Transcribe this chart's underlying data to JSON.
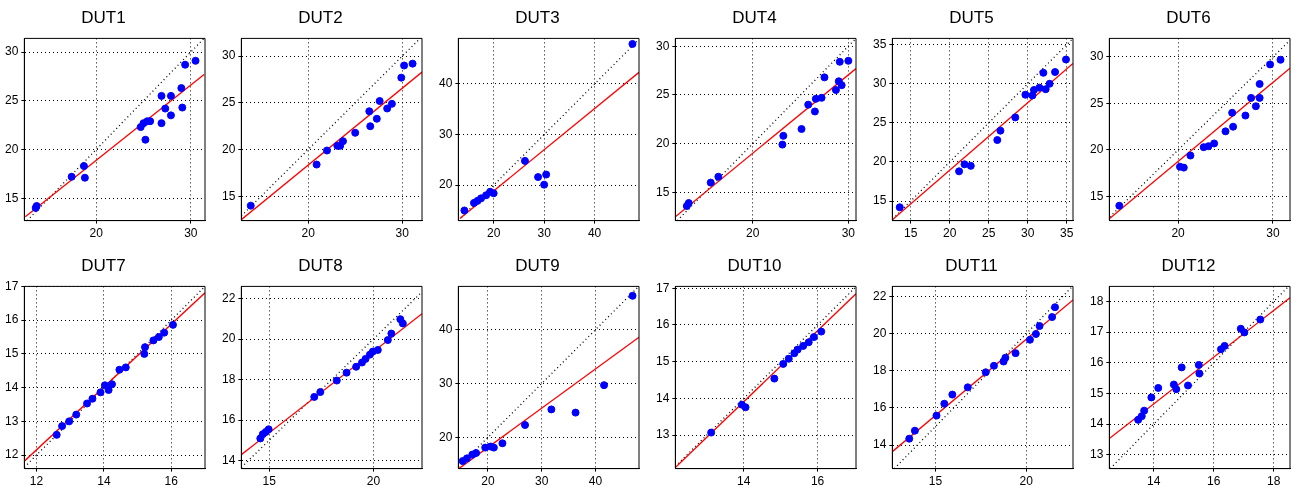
{
  "chart_data": [
    {
      "type": "scatter",
      "title": "DUT1",
      "xlim": [
        12.4,
        31.5
      ],
      "ylim": [
        12.7,
        31.4
      ],
      "xticks": [
        20,
        30
      ],
      "yticks": [
        15,
        20,
        25,
        30
      ],
      "grid": true,
      "legend": false,
      "series": [
        {
          "color": "#0000ff",
          "marker": "circle",
          "x": [
            13.6,
            13.7,
            17.4,
            18.7,
            18.8,
            24.7,
            25.0,
            25.2,
            25.4,
            25.7,
            26.9,
            26.9,
            27.3,
            27.9,
            27.9,
            29.0,
            29.1,
            29.4,
            30.5
          ],
          "values": [
            14.0,
            14.2,
            17.2,
            18.3,
            17.1,
            22.3,
            22.7,
            21.0,
            22.9,
            22.9,
            25.5,
            22.7,
            24.2,
            25.5,
            23.5,
            26.3,
            24.3,
            28.7,
            29.1
          ]
        },
        {
          "type": "line",
          "color": "#ff0000",
          "marker": "none",
          "line_style": "solid",
          "x": [
            12.5,
            31.4
          ],
          "values": [
            13.1,
            27.7
          ]
        },
        {
          "type": "line",
          "color": "#000000",
          "marker": "none",
          "line_style": "dotted",
          "x": [
            12.7,
            31.4
          ],
          "values": [
            12.7,
            31.4
          ]
        }
      ]
    },
    {
      "type": "scatter",
      "title": "DUT2",
      "xlim": [
        12.9,
        32.1
      ],
      "ylim": [
        12.4,
        31.9
      ],
      "xticks": [
        20,
        30
      ],
      "yticks": [
        15,
        20,
        25,
        30
      ],
      "grid": true,
      "legend": false,
      "series": [
        {
          "color": "#0000ff",
          "marker": "circle",
          "x": [
            13.9,
            20.9,
            22.0,
            23.1,
            23.4,
            23.7,
            25.0,
            26.5,
            26.6,
            27.3,
            27.6,
            28.4,
            28.9,
            29.9,
            30.2,
            31.1
          ],
          "values": [
            14.0,
            18.4,
            19.9,
            20.4,
            20.4,
            20.9,
            21.8,
            24.1,
            22.5,
            23.3,
            25.2,
            24.4,
            24.9,
            27.7,
            29.0,
            29.2
          ]
        },
        {
          "type": "line",
          "color": "#ff0000",
          "marker": "none",
          "line_style": "solid",
          "x": [
            12.9,
            32.1
          ],
          "values": [
            12.5,
            28.3
          ]
        },
        {
          "type": "line",
          "color": "#000000",
          "marker": "none",
          "line_style": "dotted",
          "x": [
            12.9,
            31.9
          ],
          "values": [
            12.9,
            31.9
          ]
        }
      ]
    },
    {
      "type": "scatter",
      "title": "DUT3",
      "xlim": [
        13.0,
        48.8
      ],
      "ylim": [
        13.0,
        49.0
      ],
      "xticks": [
        20,
        30,
        40
      ],
      "yticks": [
        20,
        30,
        40
      ],
      "grid": true,
      "legend": false,
      "series": [
        {
          "color": "#0000ff",
          "marker": "circle",
          "x": [
            14.2,
            16.1,
            16.8,
            17.5,
            18.5,
            19.3,
            20.0,
            26.2,
            28.8,
            30.0,
            30.4,
            47.5
          ],
          "values": [
            15.0,
            16.5,
            16.9,
            17.4,
            18.0,
            18.7,
            18.4,
            24.8,
            21.6,
            20.1,
            22.1,
            47.9
          ]
        },
        {
          "type": "line",
          "color": "#ff0000",
          "marker": "none",
          "line_style": "solid",
          "x": [
            13.3,
            48.8
          ],
          "values": [
            13.4,
            42.3
          ]
        },
        {
          "type": "line",
          "color": "#000000",
          "marker": "none",
          "line_style": "dotted",
          "x": [
            13.0,
            48.8
          ],
          "values": [
            13.0,
            48.8
          ]
        }
      ]
    },
    {
      "type": "scatter",
      "title": "DUT4",
      "xlim": [
        11.9,
        30.8
      ],
      "ylim": [
        12.1,
        30.8
      ],
      "xticks": [
        20,
        30
      ],
      "yticks": [
        15,
        20,
        25,
        30
      ],
      "grid": true,
      "legend": false,
      "series": [
        {
          "color": "#0000ff",
          "marker": "circle",
          "x": [
            13.1,
            13.3,
            15.6,
            16.4,
            23.1,
            23.2,
            25.1,
            25.8,
            26.5,
            26.6,
            27.2,
            27.5,
            28.7,
            29.0,
            29.1,
            29.3,
            30.0
          ],
          "values": [
            13.6,
            13.9,
            16.0,
            16.6,
            19.9,
            20.8,
            21.5,
            24.0,
            23.3,
            24.6,
            24.7,
            26.8,
            25.5,
            26.4,
            28.4,
            26.0,
            28.5
          ]
        },
        {
          "type": "line",
          "color": "#ff0000",
          "marker": "none",
          "line_style": "solid",
          "x": [
            11.9,
            30.8
          ],
          "values": [
            12.5,
            27.7
          ]
        },
        {
          "type": "line",
          "color": "#000000",
          "marker": "none",
          "line_style": "dotted",
          "x": [
            12.1,
            30.8
          ],
          "values": [
            12.1,
            30.8
          ]
        }
      ]
    },
    {
      "type": "scatter",
      "title": "DUT5",
      "xlim": [
        12.65,
        35.8
      ],
      "ylim": [
        12.5,
        35.8
      ],
      "xticks": [
        15,
        20,
        25,
        30,
        35
      ],
      "yticks": [
        15,
        20,
        25,
        30,
        35
      ],
      "grid": true,
      "legend": false,
      "series": [
        {
          "color": "#0000ff",
          "marker": "circle",
          "x": [
            13.6,
            21.2,
            21.9,
            22.7,
            26.1,
            26.5,
            28.4,
            29.7,
            30.6,
            30.8,
            31.5,
            32.0,
            32.3,
            32.8,
            33.5,
            34.9
          ],
          "values": [
            14.2,
            18.8,
            19.7,
            19.5,
            22.8,
            24.0,
            25.7,
            28.6,
            28.5,
            29.2,
            29.5,
            31.4,
            29.3,
            30.0,
            31.5,
            33.1
          ]
        },
        {
          "type": "line",
          "color": "#ff0000",
          "marker": "none",
          "line_style": "solid",
          "x": [
            12.65,
            35.8
          ],
          "values": [
            12.6,
            32.6
          ]
        },
        {
          "type": "line",
          "color": "#000000",
          "marker": "none",
          "line_style": "dotted",
          "x": [
            12.7,
            35.8
          ],
          "values": [
            12.7,
            35.8
          ]
        }
      ]
    },
    {
      "type": "scatter",
      "title": "DUT6",
      "xlim": [
        12.75,
        31.8
      ],
      "ylim": [
        12.4,
        32.0
      ],
      "xticks": [
        20,
        30
      ],
      "yticks": [
        15,
        20,
        25,
        30
      ],
      "grid": true,
      "legend": false,
      "series": [
        {
          "color": "#0000ff",
          "marker": "circle",
          "x": [
            13.8,
            20.2,
            20.6,
            21.3,
            22.7,
            23.2,
            23.8,
            25.0,
            25.7,
            25.8,
            27.1,
            27.7,
            28.2,
            28.6,
            28.6,
            29.7,
            30.8
          ],
          "values": [
            14.0,
            18.2,
            18.1,
            19.4,
            20.3,
            20.4,
            20.7,
            22.0,
            24.0,
            22.5,
            23.7,
            25.6,
            24.7,
            25.6,
            27.1,
            29.2,
            29.7
          ]
        },
        {
          "type": "line",
          "color": "#ff0000",
          "marker": "none",
          "line_style": "solid",
          "x": [
            12.75,
            31.8
          ],
          "values": [
            12.6,
            28.8
          ]
        },
        {
          "type": "line",
          "color": "#000000",
          "marker": "none",
          "line_style": "dotted",
          "x": [
            12.8,
            31.8
          ],
          "values": [
            12.8,
            31.8
          ]
        }
      ]
    },
    {
      "type": "scatter",
      "title": "DUT7",
      "xlim": [
        11.64,
        17.0
      ],
      "ylim": [
        11.6,
        17.0
      ],
      "xticks": [
        12,
        14,
        16
      ],
      "yticks": [
        12,
        13,
        14,
        15,
        16,
        17
      ],
      "grid": true,
      "legend": false,
      "series": [
        {
          "color": "#0000ff",
          "marker": "circle",
          "x": [
            12.6,
            12.76,
            12.97,
            13.18,
            13.5,
            13.66,
            13.9,
            14.03,
            14.14,
            14.24,
            14.46,
            14.65,
            15.2,
            15.22,
            15.47,
            15.63,
            15.79,
            16.05
          ],
          "values": [
            12.6,
            12.86,
            13.0,
            13.2,
            13.53,
            13.67,
            13.86,
            14.07,
            13.93,
            14.1,
            14.53,
            14.6,
            15.0,
            15.2,
            15.4,
            15.5,
            15.63,
            15.86
          ]
        },
        {
          "type": "line",
          "color": "#ff0000",
          "marker": "none",
          "line_style": "solid",
          "x": [
            11.64,
            17.0
          ],
          "values": [
            11.82,
            16.81
          ]
        },
        {
          "type": "line",
          "color": "#000000",
          "marker": "none",
          "line_style": "dotted",
          "x": [
            11.64,
            17.0
          ],
          "values": [
            11.64,
            17.0
          ]
        }
      ]
    },
    {
      "type": "scatter",
      "title": "DUT8",
      "xlim": [
        13.66,
        22.33
      ],
      "ylim": [
        13.6,
        22.6
      ],
      "xticks": [
        15,
        20
      ],
      "yticks": [
        14,
        16,
        18,
        20,
        22
      ],
      "grid": true,
      "legend": false,
      "series": [
        {
          "color": "#0000ff",
          "marker": "circle",
          "x": [
            14.57,
            14.69,
            14.83,
            14.97,
            17.16,
            17.45,
            18.24,
            18.71,
            19.17,
            19.45,
            19.62,
            19.83,
            19.97,
            20.21,
            20.69,
            20.86,
            21.29,
            21.41
          ],
          "values": [
            15.09,
            15.3,
            15.41,
            15.54,
            17.14,
            17.38,
            17.95,
            18.34,
            18.63,
            18.84,
            19.02,
            19.23,
            19.38,
            19.46,
            19.95,
            20.27,
            20.98,
            20.77
          ]
        },
        {
          "type": "line",
          "color": "#ff0000",
          "marker": "none",
          "line_style": "solid",
          "x": [
            13.66,
            22.33
          ],
          "values": [
            14.29,
            21.25
          ]
        },
        {
          "type": "line",
          "color": "#000000",
          "marker": "none",
          "line_style": "dotted",
          "x": [
            13.66,
            22.33
          ],
          "values": [
            13.66,
            22.33
          ]
        }
      ]
    },
    {
      "type": "scatter",
      "title": "DUT9",
      "xlim": [
        14.5,
        48.1
      ],
      "ylim": [
        14.2,
        48.05
      ],
      "xticks": [
        20,
        30,
        40
      ],
      "yticks": [
        20,
        30,
        40
      ],
      "grid": true,
      "legend": false,
      "series": [
        {
          "color": "#0000ff",
          "marker": "circle",
          "x": [
            15.3,
            16.1,
            17.1,
            17.8,
            19.5,
            20.5,
            21.1,
            22.7,
            26.9,
            31.8,
            36.3,
            41.6,
            46.9
          ],
          "values": [
            15.6,
            16.1,
            16.8,
            17.1,
            18.1,
            18.3,
            18.1,
            18.9,
            22.3,
            25.2,
            24.6,
            29.7,
            46.3
          ]
        },
        {
          "type": "line",
          "color": "#ff0000",
          "marker": "none",
          "line_style": "solid",
          "x": [
            14.6,
            48.1
          ],
          "values": [
            14.2,
            38.6
          ]
        },
        {
          "type": "line",
          "color": "#000000",
          "marker": "none",
          "line_style": "dotted",
          "x": [
            14.5,
            48.0
          ],
          "values": [
            14.5,
            48.0
          ]
        }
      ]
    },
    {
      "type": "scatter",
      "title": "DUT10",
      "xlim": [
        12.15,
        17.04
      ],
      "ylim": [
        12.09,
        17.05
      ],
      "xticks": [
        14,
        16
      ],
      "yticks": [
        13,
        14,
        15,
        16,
        17
      ],
      "grid": true,
      "legend": false,
      "series": [
        {
          "color": "#0000ff",
          "marker": "circle",
          "x": [
            13.12,
            13.95,
            14.05,
            14.83,
            15.07,
            15.22,
            15.37,
            15.46,
            15.61,
            15.76,
            15.9,
            16.1
          ],
          "values": [
            13.07,
            13.83,
            13.76,
            14.54,
            14.94,
            15.08,
            15.23,
            15.33,
            15.43,
            15.53,
            15.67,
            15.82
          ]
        },
        {
          "type": "line",
          "color": "#ff0000",
          "marker": "none",
          "line_style": "solid",
          "x": [
            12.15,
            17.04
          ],
          "values": [
            12.12,
            16.85
          ]
        },
        {
          "type": "line",
          "color": "#000000",
          "marker": "none",
          "line_style": "dotted",
          "x": [
            12.15,
            17.04
          ],
          "values": [
            12.15,
            17.04
          ]
        }
      ]
    },
    {
      "type": "scatter",
      "title": "DUT11",
      "xlim": [
        12.63,
        22.57
      ],
      "ylim": [
        12.74,
        22.54
      ],
      "xticks": [
        15,
        20
      ],
      "yticks": [
        14,
        16,
        18,
        20,
        22
      ],
      "grid": true,
      "legend": false,
      "series": [
        {
          "color": "#0000ff",
          "marker": "circle",
          "x": [
            13.56,
            13.87,
            15.06,
            15.49,
            15.93,
            16.78,
            17.77,
            18.22,
            18.75,
            18.85,
            19.41,
            20.2,
            20.53,
            20.73,
            21.42,
            21.58
          ],
          "values": [
            14.35,
            14.78,
            15.59,
            16.23,
            16.72,
            17.11,
            17.92,
            18.27,
            18.5,
            18.7,
            18.95,
            19.67,
            19.98,
            20.41,
            20.89,
            21.42
          ]
        },
        {
          "type": "line",
          "color": "#ff0000",
          "marker": "none",
          "line_style": "solid",
          "x": [
            12.63,
            22.57
          ],
          "values": [
            13.65,
            21.81
          ]
        },
        {
          "type": "line",
          "color": "#000000",
          "marker": "none",
          "line_style": "dotted",
          "x": [
            12.74,
            22.54
          ],
          "values": [
            12.74,
            22.54
          ]
        }
      ]
    },
    {
      "type": "scatter",
      "title": "DUT12",
      "xlim": [
        12.52,
        18.54
      ],
      "ylim": [
        12.55,
        18.49
      ],
      "xticks": [
        14,
        16,
        18
      ],
      "yticks": [
        13,
        14,
        15,
        16,
        17,
        18
      ],
      "grid": true,
      "legend": false,
      "series": [
        {
          "color": "#0000ff",
          "marker": "circle",
          "x": [
            13.48,
            13.6,
            13.68,
            13.92,
            14.15,
            14.67,
            14.75,
            14.93,
            15.14,
            15.5,
            15.52,
            16.24,
            16.36,
            16.9,
            17.02,
            17.55
          ],
          "values": [
            14.14,
            14.26,
            14.44,
            14.87,
            15.18,
            15.29,
            15.14,
            15.85,
            15.26,
            15.93,
            15.65,
            16.44,
            16.55,
            17.11,
            16.99,
            17.41
          ]
        },
        {
          "type": "line",
          "color": "#ff0000",
          "marker": "none",
          "line_style": "solid",
          "x": [
            12.52,
            18.54
          ],
          "values": [
            13.53,
            18.12
          ]
        },
        {
          "type": "line",
          "color": "#000000",
          "marker": "none",
          "line_style": "dotted",
          "x": [
            12.55,
            18.49
          ],
          "values": [
            12.55,
            18.49
          ]
        }
      ]
    }
  ]
}
